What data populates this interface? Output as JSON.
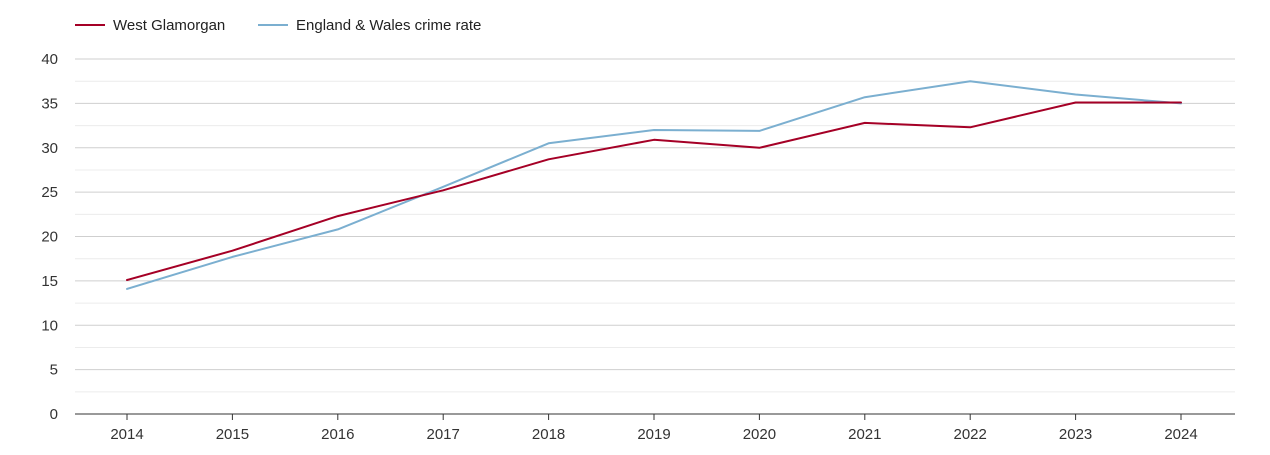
{
  "chart_data": {
    "type": "line",
    "title": "",
    "xlabel": "",
    "ylabel": "",
    "x": [
      "2014",
      "2015",
      "2016",
      "2017",
      "2018",
      "2019",
      "2020",
      "2021",
      "2022",
      "2023",
      "2024"
    ],
    "ylim": [
      0,
      40
    ],
    "yticks": [
      0,
      5,
      10,
      15,
      20,
      25,
      30,
      35,
      40
    ],
    "grid": true,
    "legend_position": "top-left",
    "series": [
      {
        "name": "West Glamorgan",
        "color": "#a50026",
        "values": [
          15.1,
          18.4,
          22.3,
          25.2,
          28.7,
          30.9,
          30.0,
          32.8,
          32.3,
          35.1,
          35.1
        ]
      },
      {
        "name": "England & Wales crime rate",
        "color": "#7bafd0",
        "values": [
          14.1,
          17.7,
          20.8,
          25.6,
          30.5,
          32.0,
          31.9,
          35.7,
          37.5,
          36.0,
          35.0
        ]
      }
    ]
  }
}
